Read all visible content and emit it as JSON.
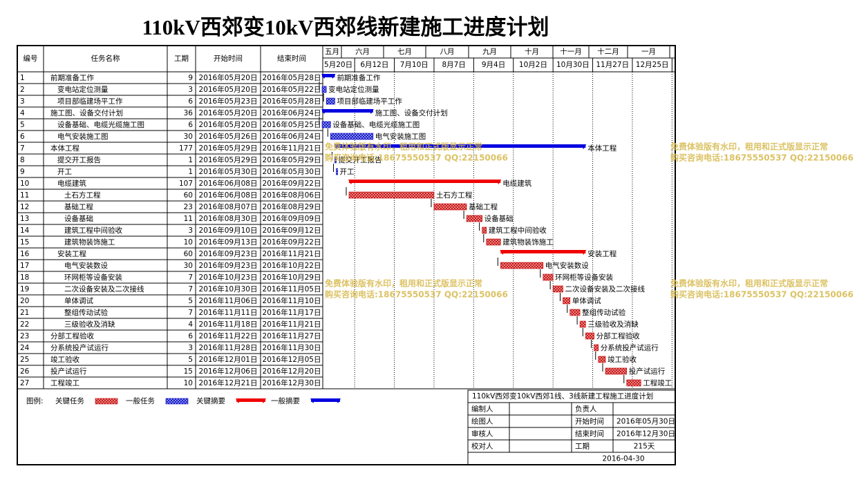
{
  "title": "110kV西郊变10kV西郊线新建施工进度计划",
  "table_header": {
    "id": "编号",
    "name": "任务名称",
    "duration": "工期",
    "start": "开始时间",
    "end": "结束时间"
  },
  "timeline": {
    "months": [
      "五月",
      "六月",
      "七月",
      "八月",
      "九月",
      "十月",
      "十一月",
      "十二月",
      "一月"
    ],
    "weeks": [
      "5月20日",
      "6月12日",
      "7月10日",
      "8月7日",
      "9月4日",
      "10月2日",
      "10月30日",
      "11月27日",
      "12月25日"
    ]
  },
  "tasks": [
    {
      "id": 1,
      "name": "前期准备工作",
      "duration": 9,
      "start": "2016年05月20日",
      "end": "2016年05月28日",
      "level": 0,
      "summary": true,
      "critical": false
    },
    {
      "id": 2,
      "name": "变电站定位测量",
      "duration": 3,
      "start": "2016年05月20日",
      "end": "2016年05月22日",
      "level": 1,
      "summary": false,
      "critical": false
    },
    {
      "id": 3,
      "name": "项目部临建场平工作",
      "duration": 6,
      "start": "2016年05月23日",
      "end": "2016年05月28日",
      "level": 1,
      "summary": false,
      "critical": false
    },
    {
      "id": 4,
      "name": "施工图、设备交付计划",
      "duration": 36,
      "start": "2016年05月20日",
      "end": "2016年06月24日",
      "level": 0,
      "summary": true,
      "critical": false
    },
    {
      "id": 5,
      "name": "设备基础、电缆光缆施工图",
      "duration": 6,
      "start": "2016年05月20日",
      "end": "2016年05月25日",
      "level": 1,
      "summary": false,
      "critical": false
    },
    {
      "id": 6,
      "name": "电气安装施工图",
      "duration": 30,
      "start": "2016年05月26日",
      "end": "2016年06月24日",
      "level": 1,
      "summary": false,
      "critical": false
    },
    {
      "id": 7,
      "name": "本体工程",
      "duration": 177,
      "start": "2016年05月29日",
      "end": "2016年11月21日",
      "level": 0,
      "summary": true,
      "critical": false
    },
    {
      "id": 8,
      "name": "提交开工报告",
      "duration": 1,
      "start": "2016年05月29日",
      "end": "2016年05月29日",
      "level": 1,
      "summary": false,
      "critical": false
    },
    {
      "id": 9,
      "name": "开工",
      "duration": 1,
      "start": "2016年05月30日",
      "end": "2016年05月30日",
      "level": 1,
      "summary": false,
      "critical": false
    },
    {
      "id": 10,
      "name": "电缆建筑",
      "duration": 107,
      "start": "2016年06月08日",
      "end": "2016年09月22日",
      "level": 1,
      "summary": true,
      "critical": true
    },
    {
      "id": 11,
      "name": "土石方工程",
      "duration": 60,
      "start": "2016年06月08日",
      "end": "2016年08月06日",
      "level": 2,
      "summary": false,
      "critical": true
    },
    {
      "id": 12,
      "name": "基础工程",
      "duration": 23,
      "start": "2016年08月07日",
      "end": "2016年08月29日",
      "level": 2,
      "summary": false,
      "critical": true
    },
    {
      "id": 13,
      "name": "设备基础",
      "duration": 11,
      "start": "2016年08月30日",
      "end": "2016年09月09日",
      "level": 2,
      "summary": false,
      "critical": true
    },
    {
      "id": 14,
      "name": "建筑工程中间验收",
      "duration": 3,
      "start": "2016年09月10日",
      "end": "2016年09月12日",
      "level": 2,
      "summary": false,
      "critical": true
    },
    {
      "id": 15,
      "name": "建筑物装饰施工",
      "duration": 10,
      "start": "2016年09月13日",
      "end": "2016年09月22日",
      "level": 2,
      "summary": false,
      "critical": true
    },
    {
      "id": 16,
      "name": "安装工程",
      "duration": 60,
      "start": "2016年09月23日",
      "end": "2016年11月21日",
      "level": 1,
      "summary": true,
      "critical": true
    },
    {
      "id": 17,
      "name": "电气安装数设",
      "duration": 30,
      "start": "2016年09月23日",
      "end": "2016年10月22日",
      "level": 2,
      "summary": false,
      "critical": true
    },
    {
      "id": 18,
      "name": "环网柜等设备安装",
      "duration": 7,
      "start": "2016年10月23日",
      "end": "2016年10月29日",
      "level": 2,
      "summary": false,
      "critical": true
    },
    {
      "id": 19,
      "name": "二次设备安装及二次接线",
      "duration": 7,
      "start": "2016年10月30日",
      "end": "2016年11月05日",
      "level": 2,
      "summary": false,
      "critical": true
    },
    {
      "id": 20,
      "name": "单体调试",
      "duration": 5,
      "start": "2016年11月06日",
      "end": "2016年11月10日",
      "level": 2,
      "summary": false,
      "critical": true
    },
    {
      "id": 21,
      "name": "整组传动试验",
      "duration": 7,
      "start": "2016年11月11日",
      "end": "2016年11月17日",
      "level": 2,
      "summary": false,
      "critical": true
    },
    {
      "id": 22,
      "name": "三级验收及消缺",
      "duration": 4,
      "start": "2016年11月18日",
      "end": "2016年11月21日",
      "level": 2,
      "summary": false,
      "critical": true
    },
    {
      "id": 23,
      "name": "分部工程验收",
      "duration": 6,
      "start": "2016年11月22日",
      "end": "2016年11月27日",
      "level": 0,
      "summary": false,
      "critical": true
    },
    {
      "id": 24,
      "name": "分系统投产试运行",
      "duration": 3,
      "start": "2016年11月28日",
      "end": "2016年11月30日",
      "level": 0,
      "summary": false,
      "critical": true
    },
    {
      "id": 25,
      "name": "竣工验收",
      "duration": 5,
      "start": "2016年12月01日",
      "end": "2016年12月05日",
      "level": 0,
      "summary": false,
      "critical": true
    },
    {
      "id": 26,
      "name": "投产试运行",
      "duration": 15,
      "start": "2016年12月06日",
      "end": "2016年12月20日",
      "level": 0,
      "summary": false,
      "critical": true
    },
    {
      "id": 27,
      "name": "工程竣工",
      "duration": 10,
      "start": "2016年12月21日",
      "end": "2016年12月30日",
      "level": 0,
      "summary": false,
      "critical": true
    }
  ],
  "legend": {
    "label": "图例:",
    "items": [
      {
        "label": "关键任务",
        "critical": true,
        "summary": false
      },
      {
        "label": "一般任务",
        "critical": false,
        "summary": false
      },
      {
        "label": "关键摘要",
        "critical": true,
        "summary": true
      },
      {
        "label": "一般摘要",
        "critical": false,
        "summary": true
      }
    ]
  },
  "info": {
    "title": "110kV西郊变10kV西郊1线、3线新建工程施工进度计划",
    "compiler": "编制人",
    "owner": "负责人",
    "drafter": "绘图人",
    "start_label": "开始时间",
    "start": "2016年05月30日",
    "reviewer": "审核人",
    "end_label": "结束时间",
    "end": "2016年12月30日",
    "checker": "校对人",
    "duration_label": "工期",
    "duration": "215天",
    "date": "2016-04-30"
  },
  "watermark": [
    "免费体验版有水印，租用和正式版显示正常",
    "购买咨询电话:18675550537 QQ:22150066"
  ]
}
